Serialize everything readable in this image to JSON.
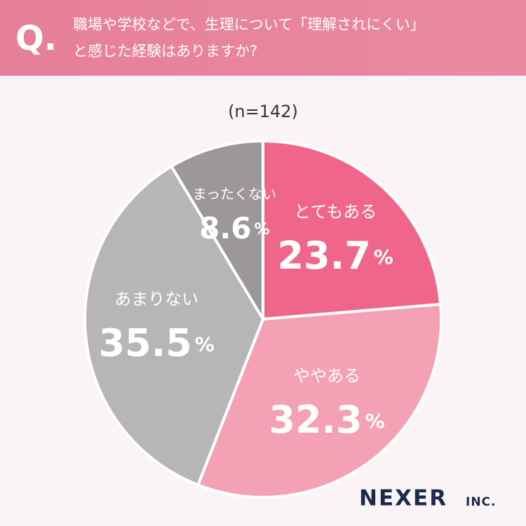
{
  "chart_data": {
    "type": "pie",
    "question_mark": "Q.",
    "title": [
      "職場や学校などで、生理について「理解されにくい」",
      "と感じた経験はありますか?"
    ],
    "subtitle": "(n=142)",
    "categories": [
      "とてもある",
      "ややある",
      "あまりない",
      "まったくない"
    ],
    "values": [
      23.7,
      32.3,
      35.5,
      8.6
    ],
    "value_labels": [
      "23.7%",
      "32.3%",
      "35.5%",
      "8.6%"
    ],
    "colors": [
      "#f0668b",
      "#f4a1b6",
      "#b7b5b6",
      "#9c9898"
    ],
    "brand": "NEXER",
    "brand_suffix": "INC."
  }
}
